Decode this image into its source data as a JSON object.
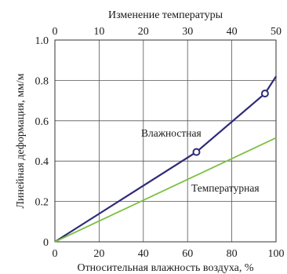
{
  "chart_data": {
    "type": "line",
    "top_axis": {
      "label": "Изменение температуры",
      "range": [
        0,
        50
      ],
      "ticks": [
        0,
        10,
        20,
        30,
        40,
        50
      ]
    },
    "x_axis": {
      "label": "Относительная влажность воздуха, %",
      "range": [
        0,
        100
      ],
      "ticks": [
        0,
        20,
        40,
        60,
        80,
        100
      ]
    },
    "y_axis": {
      "label": "Линейная деформация, мм/м",
      "range": [
        0,
        1.0
      ],
      "ticks": [
        "0",
        "0.2",
        "0.4",
        "0.6",
        "0.8",
        "1.0"
      ]
    },
    "grid": true,
    "series": [
      {
        "name": "Влажностная",
        "color": "#2e2a78",
        "points": [
          [
            0,
            0
          ],
          [
            64,
            0.445
          ],
          [
            95,
            0.735
          ],
          [
            100,
            0.82
          ]
        ],
        "markers": [
          [
            64,
            0.445
          ],
          [
            95,
            0.735
          ]
        ]
      },
      {
        "name": "Температурная",
        "color": "#7cc142",
        "points": [
          [
            0,
            0
          ],
          [
            100,
            0.515
          ]
        ]
      }
    ]
  }
}
